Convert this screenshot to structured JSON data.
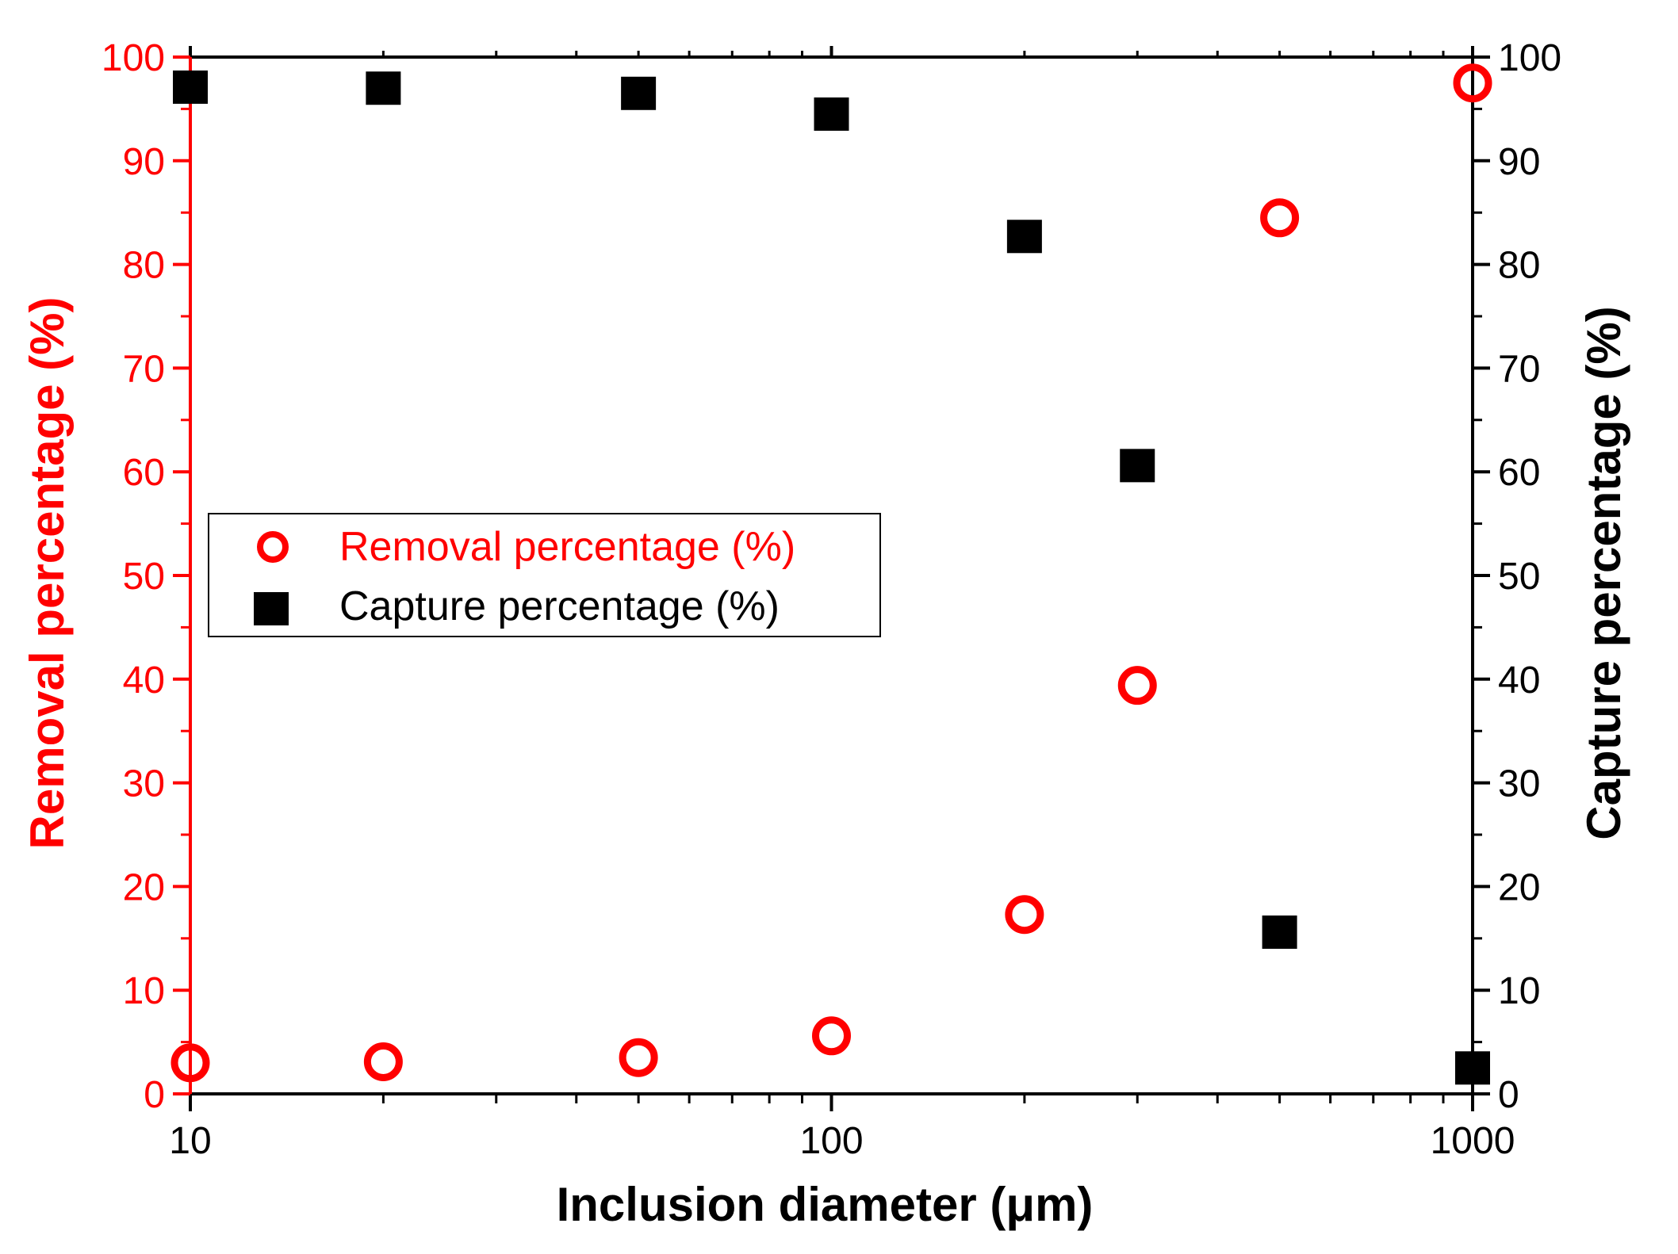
{
  "chart_data": {
    "type": "scatter",
    "title": "",
    "xlabel": "Inclusion diameter (μm)",
    "ylabel_left": "Removal percentage (%)",
    "ylabel_right": "Capture percentage (%)",
    "x_scale": "log",
    "xlim": [
      10,
      1000
    ],
    "ylim": [
      0,
      100
    ],
    "x_ticks": [
      "10",
      "100",
      "1000"
    ],
    "y_ticks": [
      "0",
      "10",
      "20",
      "30",
      "40",
      "50",
      "60",
      "70",
      "80",
      "90",
      "100"
    ],
    "legend_position": "center-left",
    "series": [
      {
        "name": "Removal percentage (%)",
        "axis": "left",
        "marker": "open-circle",
        "color": "#ff0000",
        "x": [
          10,
          20,
          50,
          100,
          200,
          300,
          500,
          1000
        ],
        "y": [
          3.0,
          3.1,
          3.5,
          5.6,
          17.3,
          39.4,
          84.5,
          97.5
        ]
      },
      {
        "name": "Capture percentage (%)",
        "axis": "right",
        "marker": "filled-square",
        "color": "#000000",
        "x": [
          10,
          20,
          50,
          100,
          200,
          300,
          500,
          1000
        ],
        "y": [
          97.1,
          97.0,
          96.5,
          94.5,
          82.7,
          60.6,
          15.6,
          2.5
        ]
      }
    ]
  },
  "colors": {
    "left_axis": "#ff0000",
    "right_axis": "#000000"
  }
}
